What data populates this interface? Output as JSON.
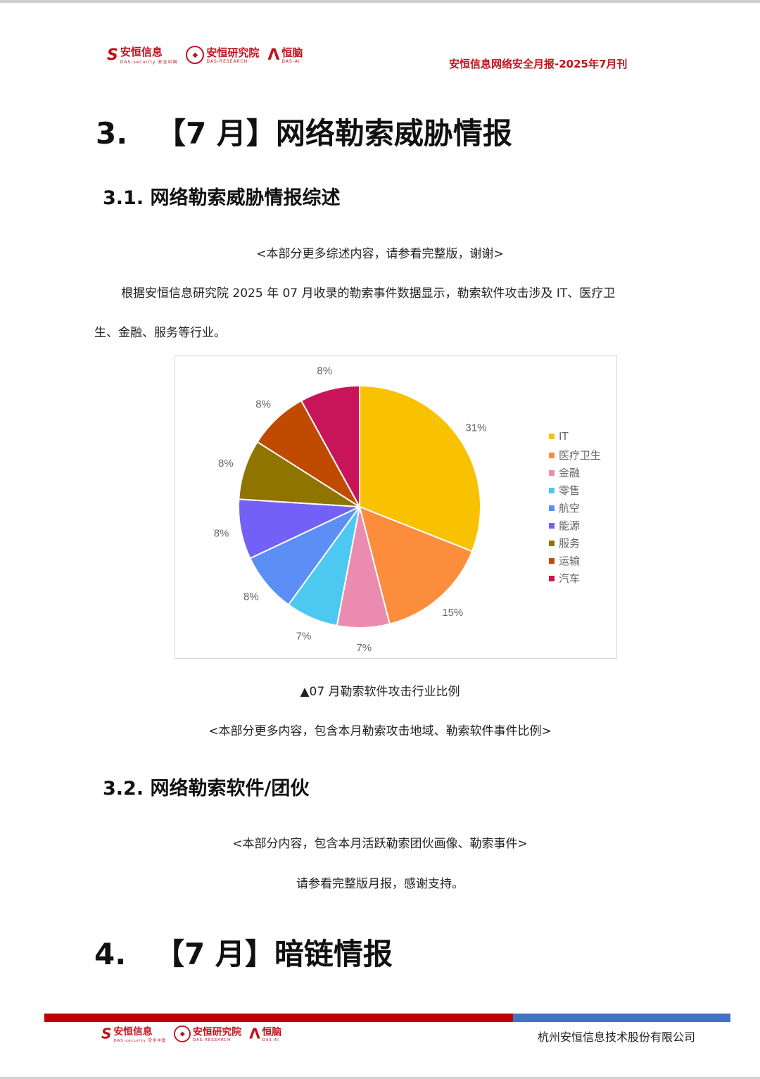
{
  "header": {
    "logos": [
      {
        "main": "安恒信息",
        "sub": "DAS-security 安全中国"
      },
      {
        "main": "安恒研究院",
        "sub": "DAS-RESEARCH"
      },
      {
        "main": "恒脑",
        "sub": "DAS-AI"
      }
    ],
    "title": "安恒信息网络安全月报-2025年7月刊"
  },
  "section3": {
    "num": "3.",
    "title": "【7 月】网络勒索威胁情报"
  },
  "section3_1": {
    "title": "3.1.  网络勒索威胁情报综述",
    "note": "<本部分更多综述内容，请参看完整版，谢谢>",
    "para_line1": "根据安恒信息研究院 2025 年 07 月收录的勒索事件数据显示，勒索软件攻击涉及 IT、医疗卫",
    "para_line2": "生、金融、服务等行业。"
  },
  "chart_data": {
    "type": "pie",
    "categories": [
      "IT",
      "医疗卫生",
      "金融",
      "零售",
      "航空",
      "能源",
      "服务",
      "运输",
      "汽车"
    ],
    "values": [
      31,
      15,
      7,
      7,
      8,
      8,
      8,
      8,
      8
    ],
    "labels": [
      "31%",
      "15%",
      "7%",
      "7%",
      "8%",
      "8%",
      "8%",
      "8%",
      "8%"
    ],
    "colors": [
      "#f9c200",
      "#fb8d3d",
      "#ec8bb0",
      "#4dc8f0",
      "#5b8ff5",
      "#7360f7",
      "#8f7400",
      "#c04b00",
      "#c8155a"
    ],
    "legend_position": "right"
  },
  "caption": "▲07 月勒索软件攻击行业比例",
  "note2": "<本部分更多内容，包含本月勒索攻击地域、勒索软件事件比例>",
  "section3_2": {
    "title": "3.2.  网络勒索软件/团伙",
    "note": "<本部分内容，包含本月活跃勒索团伙画像、勒索事件>",
    "note2": "请参看完整版月报，感谢支持。"
  },
  "section4": {
    "num": "4.",
    "title": "【7 月】暗链情报"
  },
  "footer": {
    "company": "杭州安恒信息技术股份有限公司"
  }
}
